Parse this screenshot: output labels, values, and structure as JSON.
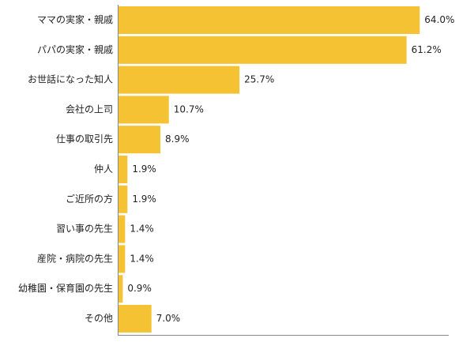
{
  "chart_data": {
    "type": "bar",
    "orientation": "horizontal",
    "categories": [
      "ママの実家・親戚",
      "パパの実家・親戚",
      "お世話になった知人",
      "会社の上司",
      "仕事の取引先",
      "仲人",
      "ご近所の方",
      "習い事の先生",
      "産院・病院の先生",
      "幼稚園・保育園の先生",
      "その他"
    ],
    "values": [
      64.0,
      61.2,
      25.7,
      10.7,
      8.9,
      1.9,
      1.9,
      1.4,
      1.4,
      0.9,
      7.0
    ],
    "value_labels": [
      "64.0%",
      "61.2%",
      "25.7%",
      "10.7%",
      "8.9%",
      "1.9%",
      "1.9%",
      "1.4%",
      "1.4%",
      "0.9%",
      "7.0%"
    ],
    "xlim": [
      0,
      66
    ],
    "grid": false,
    "legend": "none",
    "bar_color": "#F4C232",
    "axis_color": "#888888"
  }
}
